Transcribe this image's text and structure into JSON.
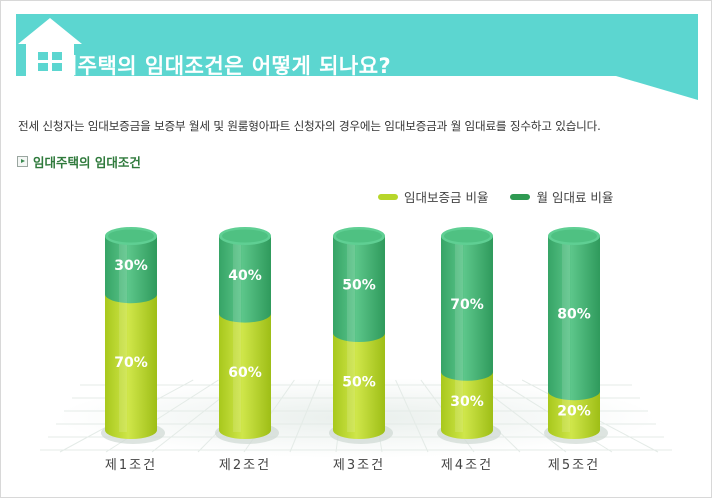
{
  "header": {
    "title": "임대주택의 임대조건은 어떻게 되나요?",
    "colors": {
      "banner": "#5cd6d0",
      "house": "#ffffff"
    },
    "house_icon": "house-icon"
  },
  "intro_text": "전세 신청자는 임대보증금을 보증부 월세 및 원룸형아파트 신청자의 경우에는 임대보증금과 월 임대료를 징수하고 있습니다.",
  "section": {
    "title": "임대주택의 임대조건",
    "icon": "arrow-box-icon"
  },
  "chart_data": {
    "type": "bar",
    "stacked": true,
    "categories": [
      "제1조건",
      "제2조건",
      "제3조건",
      "제4조건",
      "제5조건"
    ],
    "series": [
      {
        "name": "임대보증금 비율",
        "values": [
          70,
          60,
          50,
          30,
          20
        ],
        "labels": [
          "70%",
          "60%",
          "50%",
          "30%",
          "20%"
        ],
        "color": "#b7d62a"
      },
      {
        "name": "월 임대료 비율",
        "values": [
          30,
          40,
          50,
          70,
          80
        ],
        "labels": [
          "30%",
          "40%",
          "50%",
          "70%",
          "80%"
        ],
        "color": "#3fb070"
      }
    ],
    "ylim": [
      0,
      100
    ],
    "legend_position": "top-right",
    "grid": false
  }
}
